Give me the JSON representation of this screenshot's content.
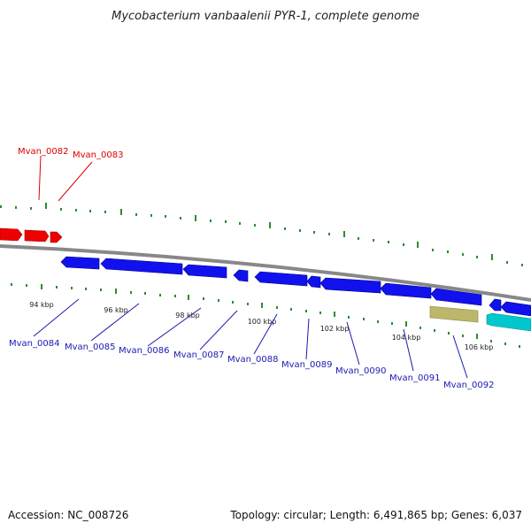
{
  "title": "Mycobacterium vanbaalenii PYR-1, complete genome",
  "footer": {
    "accession": "Accession: NC_008726",
    "summary": "Topology: circular; Length: 6,491,865 bp; Genes: 6,037"
  },
  "colors": {
    "forward_gene": "#ee0000",
    "reverse_gene": "#1111ee",
    "rna_gene_khaki": "#bdb76b",
    "cyan_gene": "#00c8cc",
    "backbone": "#888888",
    "tick": "#2e8b2e",
    "forward_label": "#dd0000",
    "reverse_label": "#1a1ab0"
  },
  "scale_labels": [
    "94 kbp",
    "96 kbp",
    "98 kbp",
    "100 kbp",
    "102 kbp",
    "104 kbp",
    "106 kbp"
  ],
  "gene_labels_top": [
    "Mvan_0082",
    "Mvan_0083"
  ],
  "gene_labels_bottom": [
    "Mvan_0084",
    "Mvan_0085",
    "Mvan_0086",
    "Mvan_0087",
    "Mvan_0088",
    "Mvan_0089",
    "Mvan_0090",
    "Mvan_0091",
    "Mvan_0092"
  ]
}
